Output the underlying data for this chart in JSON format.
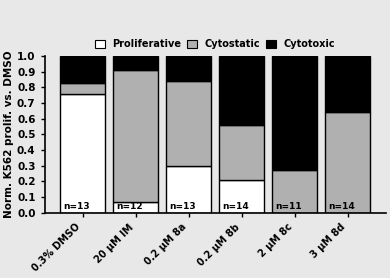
{
  "categories": [
    "0.3% DMSO",
    "20 μM IM",
    "0.2 μM 8a",
    "0.2 μM 8b",
    "2 μM 8c",
    "3 μM 8d"
  ],
  "proliferative": [
    0.76,
    0.07,
    0.3,
    0.21,
    0.0,
    0.0
  ],
  "cytostatic": [
    0.07,
    0.84,
    0.54,
    0.35,
    0.27,
    0.64
  ],
  "cytotoxic": [
    0.17,
    0.09,
    0.16,
    0.44,
    0.73,
    0.36
  ],
  "n_labels": [
    "n=13",
    "n=12",
    "n=13",
    "n=14",
    "n=11",
    "n=14"
  ],
  "color_proliferative": "#ffffff",
  "color_cytostatic": "#b0b0b0",
  "color_cytotoxic": "#000000",
  "edge_color": "#000000",
  "ylabel": "Norm. K562 prolif. vs. DMSO",
  "ylim": [
    0,
    1.0
  ],
  "yticks": [
    0,
    0.1,
    0.2,
    0.3,
    0.4,
    0.5,
    0.6,
    0.7,
    0.8,
    0.9,
    1
  ],
  "legend_labels": [
    "Proliferative",
    "Cytostatic",
    "Cytotoxic"
  ],
  "bar_width": 0.85,
  "figsize": [
    3.9,
    2.78
  ],
  "dpi": 100
}
